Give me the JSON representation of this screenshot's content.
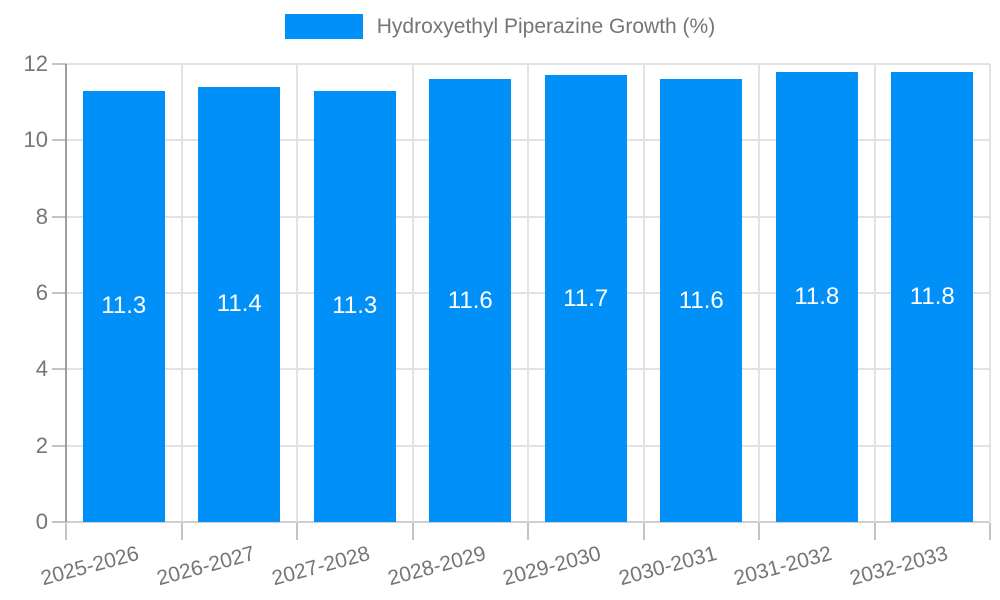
{
  "chart_data": {
    "type": "bar",
    "title": "",
    "legend": "Hydroxyethyl Piperazine Growth (%)",
    "legend_position": "top",
    "categories": [
      "2025-2026",
      "2026-2027",
      "2027-2028",
      "2028-2029",
      "2029-2030",
      "2030-2031",
      "2031-2032",
      "2032-2033"
    ],
    "values": [
      11.3,
      11.4,
      11.3,
      11.6,
      11.7,
      11.6,
      11.8,
      11.8
    ],
    "value_labels": [
      "11.3",
      "11.4",
      "11.3",
      "11.6",
      "11.7",
      "11.6",
      "11.8",
      "11.8"
    ],
    "xlabel": "",
    "ylabel": "",
    "ylim": [
      0,
      12
    ],
    "yticks": [
      0,
      2,
      4,
      6,
      8,
      10,
      12
    ],
    "grid": true,
    "x_label_rotation_deg": -15,
    "colors": {
      "bar": "#0090F8",
      "axis_text": "#757575",
      "value_label": "#ffffff",
      "grid_line": "#e2e2e2",
      "axis_line": "#9e9e9e",
      "background": "#ffffff"
    }
  }
}
